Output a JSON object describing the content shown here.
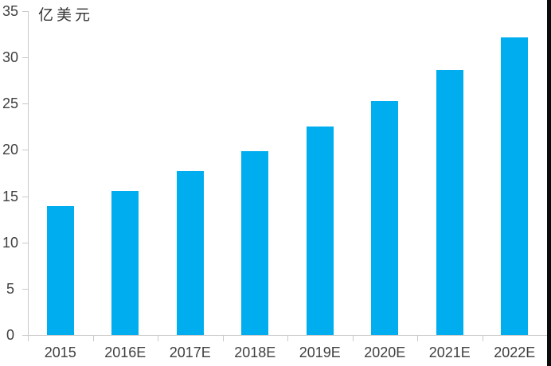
{
  "page": {
    "background_color": "#ffffff",
    "right_edge_color": "#0b0b0b"
  },
  "chart_data": {
    "type": "bar",
    "title": "",
    "ylabel": "亿美元",
    "xlabel": "",
    "categories": [
      "2015",
      "2016E",
      "2017E",
      "2018E",
      "2019E",
      "2020E",
      "2021E",
      "2022E"
    ],
    "values": [
      13.9,
      15.6,
      17.7,
      19.9,
      22.5,
      25.3,
      28.6,
      32.2
    ],
    "ylim": [
      0,
      35
    ],
    "yticks": [
      0,
      5,
      10,
      15,
      20,
      25,
      30,
      35
    ],
    "grid": false,
    "legend_position": "none",
    "bar_color": "#00AEEF",
    "axis_color": "#c9c9c9",
    "text_color": "#3f3f3f"
  }
}
